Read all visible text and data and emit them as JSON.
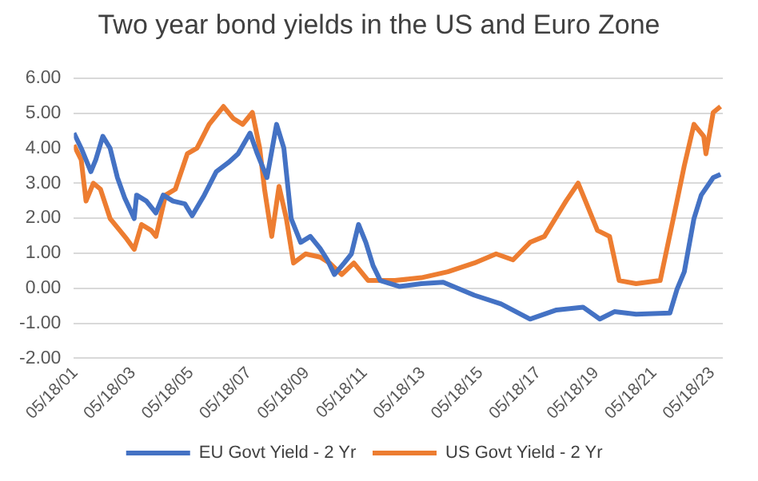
{
  "chart_data": {
    "type": "line",
    "title": "Two year bond yields in the US and Euro Zone",
    "xlim": [
      "2001-05-01",
      "2023-09-30"
    ],
    "xticks": [
      {
        "value": "2001-05-18",
        "label": "05/18/01"
      },
      {
        "value": "2003-05-18",
        "label": "05/18/03"
      },
      {
        "value": "2005-05-18",
        "label": "05/18/05"
      },
      {
        "value": "2007-05-18",
        "label": "05/18/07"
      },
      {
        "value": "2009-05-18",
        "label": "05/18/09"
      },
      {
        "value": "2011-05-18",
        "label": "05/18/11"
      },
      {
        "value": "2013-05-18",
        "label": "05/18/13"
      },
      {
        "value": "2015-05-18",
        "label": "05/18/15"
      },
      {
        "value": "2017-05-18",
        "label": "05/18/17"
      },
      {
        "value": "2019-05-18",
        "label": "05/18/19"
      },
      {
        "value": "2021-05-18",
        "label": "05/18/21"
      },
      {
        "value": "2023-05-18",
        "label": "05/18/23"
      }
    ],
    "ylim": [
      -2,
      6
    ],
    "yticks": [
      {
        "value": -2,
        "label": "-2.00"
      },
      {
        "value": -1,
        "label": "-1.00"
      },
      {
        "value": 0,
        "label": "0.00"
      },
      {
        "value": 1,
        "label": "1.00"
      },
      {
        "value": 2,
        "label": "2.00"
      },
      {
        "value": 3,
        "label": "3.00"
      },
      {
        "value": 4,
        "label": "4.00"
      },
      {
        "value": 5,
        "label": "5.00"
      },
      {
        "value": 6,
        "label": "6.00"
      }
    ],
    "grid": "y",
    "legend": "bottom",
    "marker": "none",
    "line_style": "solid",
    "series": [
      {
        "name": "EU Govt Yield - 2 Yr",
        "color": "#4472c4",
        "x": [
          "2001-05",
          "2001-08",
          "2001-12",
          "2002-02",
          "2002-05",
          "2002-08",
          "2002-11",
          "2003-02",
          "2003-06",
          "2003-07",
          "2003-11",
          "2004-03",
          "2004-06",
          "2004-10",
          "2005-03",
          "2005-06",
          "2005-11",
          "2006-04",
          "2006-09",
          "2007-01",
          "2007-06",
          "2007-09",
          "2008-01",
          "2008-05",
          "2008-08",
          "2008-11",
          "2009-03",
          "2009-07",
          "2009-11",
          "2010-02",
          "2010-05",
          "2010-09",
          "2010-12",
          "2011-03",
          "2011-06",
          "2011-09",
          "2011-12",
          "2012-08",
          "2013-05",
          "2014-02",
          "2015-03",
          "2016-02",
          "2017-02",
          "2018-01",
          "2018-12",
          "2019-07",
          "2020-01",
          "2020-10",
          "2021-12",
          "2022-03",
          "2022-06",
          "2022-10",
          "2023-01",
          "2023-06",
          "2023-09"
        ],
        "values": [
          4.43,
          4.0,
          3.33,
          3.67,
          4.34,
          4.0,
          3.16,
          2.58,
          1.99,
          2.66,
          2.49,
          2.15,
          2.66,
          2.49,
          2.41,
          2.07,
          2.66,
          3.33,
          3.59,
          3.84,
          4.43,
          3.84,
          3.16,
          4.68,
          4.0,
          1.99,
          1.31,
          1.48,
          1.14,
          0.81,
          0.39,
          0.72,
          0.98,
          1.82,
          1.31,
          0.64,
          0.22,
          0.05,
          0.13,
          0.17,
          -0.2,
          -0.45,
          -0.88,
          -0.62,
          -0.54,
          -0.88,
          -0.67,
          -0.74,
          -0.71,
          -0.03,
          0.47,
          1.99,
          2.66,
          3.16,
          3.25
        ]
      },
      {
        "name": "US Govt Yield - 2 Yr",
        "color": "#ed7d31",
        "x": [
          "2001-05",
          "2001-08",
          "2001-10",
          "2002-01",
          "2002-04",
          "2002-08",
          "2002-12",
          "2003-03",
          "2003-06",
          "2003-09",
          "2004-01",
          "2004-03",
          "2004-07",
          "2004-11",
          "2005-04",
          "2005-08",
          "2006-01",
          "2006-07",
          "2006-11",
          "2007-03",
          "2007-07",
          "2007-10",
          "2007-12",
          "2008-03",
          "2008-06",
          "2008-09",
          "2008-12",
          "2009-05",
          "2009-11",
          "2010-03",
          "2010-08",
          "2011-01",
          "2011-07",
          "2012-06",
          "2013-05",
          "2014-04",
          "2015-03",
          "2015-12",
          "2016-07",
          "2017-02",
          "2017-08",
          "2018-05",
          "2018-10",
          "2019-02",
          "2019-06",
          "2019-11",
          "2020-03",
          "2020-10",
          "2021-08",
          "2022-03",
          "2022-06",
          "2022-10",
          "2023-02",
          "2023-03",
          "2023-06",
          "2023-09"
        ],
        "values": [
          4.09,
          3.67,
          2.49,
          3.0,
          2.83,
          1.99,
          1.65,
          1.4,
          1.11,
          1.82,
          1.65,
          1.48,
          2.66,
          2.83,
          3.84,
          4.0,
          4.68,
          5.19,
          4.85,
          4.68,
          5.02,
          4.0,
          2.83,
          1.48,
          2.91,
          1.99,
          0.72,
          0.98,
          0.89,
          0.72,
          0.39,
          0.72,
          0.22,
          0.22,
          0.3,
          0.47,
          0.72,
          0.98,
          0.81,
          1.31,
          1.48,
          2.49,
          3.0,
          2.32,
          1.65,
          1.48,
          0.22,
          0.13,
          0.22,
          2.49,
          3.5,
          4.68,
          4.34,
          3.84,
          5.02,
          5.19
        ]
      }
    ]
  }
}
